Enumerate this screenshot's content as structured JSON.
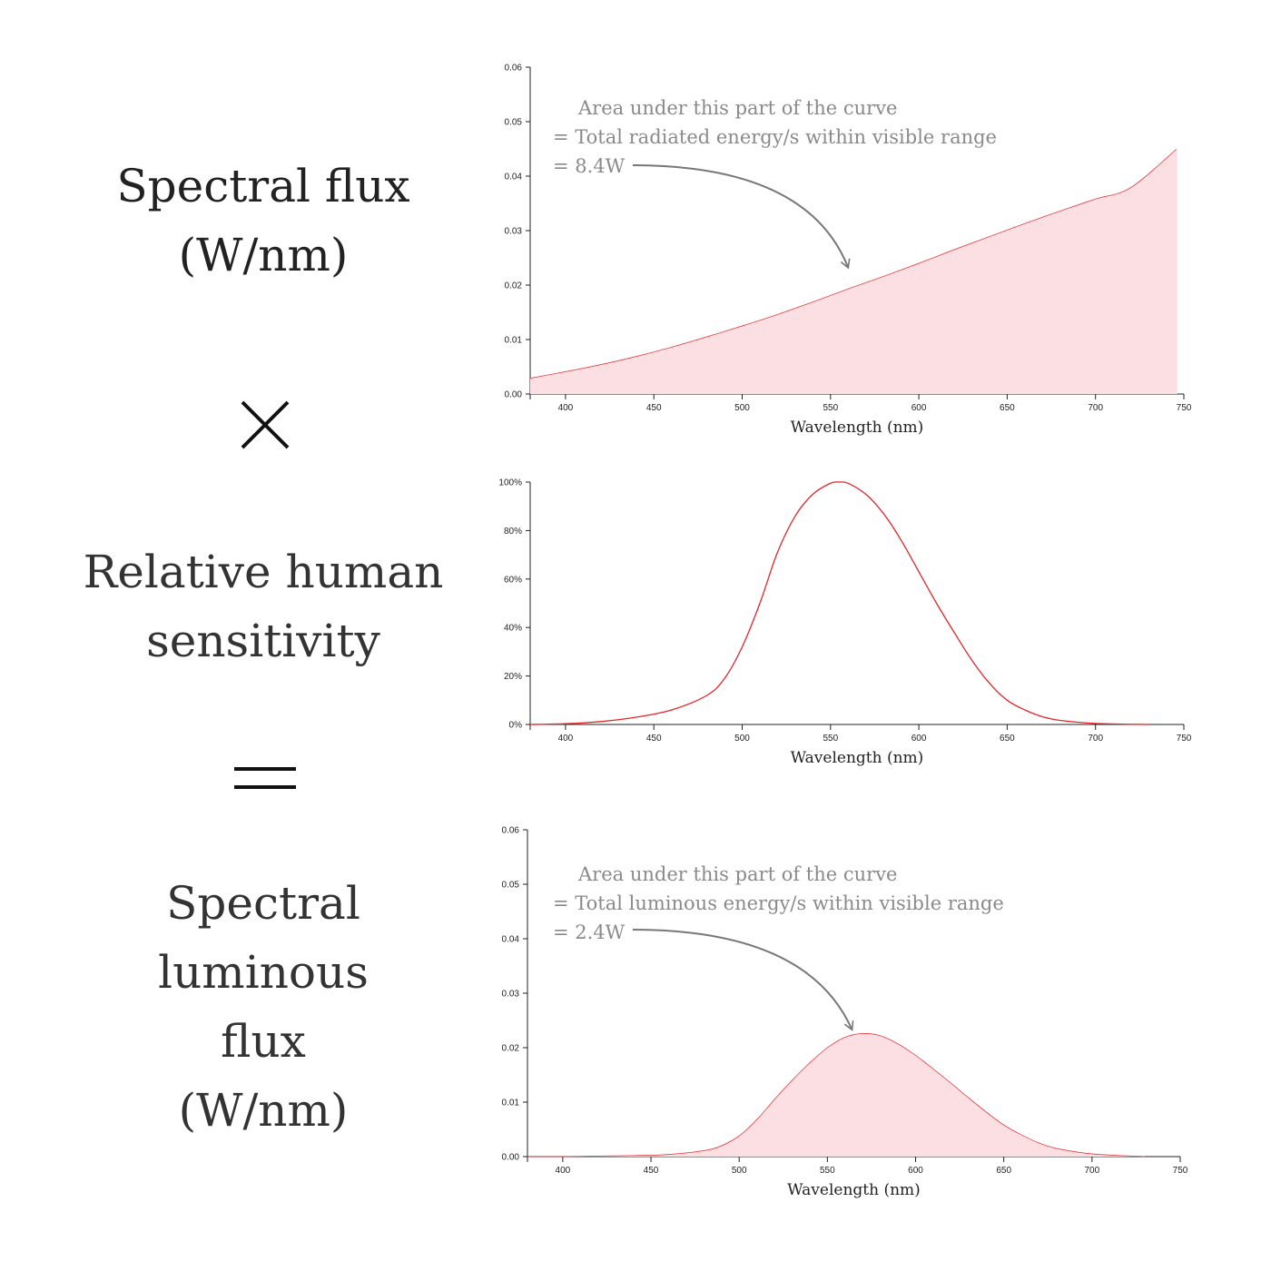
{
  "labels": {
    "spectral_flux": [
      "Spectral flux",
      "(W/nm)"
    ],
    "sensitivity": [
      "Relative human",
      "sensitivity"
    ],
    "luminous_flux": [
      "Spectral",
      "luminous",
      "flux",
      "(W/nm)"
    ]
  },
  "operators": {
    "multiply": "×",
    "equals": "="
  },
  "colors": {
    "curve": "#e2262b",
    "fill": "#fbdfe2",
    "annotation": "#8a8a8a",
    "axis": "#222222"
  },
  "chart_data": [
    {
      "type": "area",
      "title": "Spectral flux (W/nm)",
      "xlabel": "Wavelength (nm)",
      "ylabel": "",
      "xlim": [
        380,
        750
      ],
      "ylim": [
        0,
        0.06
      ],
      "xticks": [
        400,
        450,
        500,
        550,
        600,
        650,
        700,
        750
      ],
      "xtick_labels": [
        "400",
        "450",
        "500",
        "550",
        "600",
        "650",
        "700",
        "750"
      ],
      "yticks": [
        0,
        0.01,
        0.02,
        0.03,
        0.04,
        0.05,
        0.06
      ],
      "ytick_labels": [
        "0.00",
        "0.01",
        "0.02",
        "0.03",
        "0.04",
        "0.05",
        "0.06"
      ],
      "x": [
        380,
        400,
        420,
        440,
        460,
        480,
        500,
        520,
        540,
        560,
        580,
        600,
        620,
        640,
        660,
        680,
        700,
        720,
        746
      ],
      "y": [
        0.0029,
        0.0041,
        0.0054,
        0.0069,
        0.0086,
        0.0105,
        0.0125,
        0.0146,
        0.0169,
        0.0193,
        0.0216,
        0.024,
        0.0265,
        0.0289,
        0.0313,
        0.0336,
        0.0358,
        0.0379,
        0.045
      ],
      "annotation": {
        "lines": [
          "Area under this part of the curve",
          "= Total radiated energy/s within visible range",
          "= 8.4W"
        ],
        "points_to": [
          560,
          0.0225
        ]
      }
    },
    {
      "type": "line",
      "title": "Relative human sensitivity",
      "xlabel": "Wavelength (nm)",
      "ylabel": "",
      "xlim": [
        380,
        750
      ],
      "ylim": [
        0,
        100
      ],
      "xticks": [
        400,
        450,
        500,
        550,
        600,
        650,
        700,
        750
      ],
      "xtick_labels": [
        "400",
        "450",
        "500",
        "550",
        "600",
        "650",
        "700",
        "750"
      ],
      "yticks": [
        0,
        20,
        40,
        60,
        80,
        100
      ],
      "ytick_labels": [
        "0%",
        "20%",
        "40%",
        "60%",
        "80%",
        "100%"
      ],
      "x": [
        380,
        400,
        420,
        440,
        460,
        480,
        490,
        500,
        510,
        520,
        530,
        540,
        550,
        555,
        560,
        570,
        580,
        590,
        600,
        610,
        620,
        630,
        640,
        650,
        660,
        670,
        680,
        700,
        730
      ],
      "y": [
        0,
        0.3,
        1.2,
        3.0,
        6.0,
        12,
        19,
        32,
        50,
        71,
        86,
        95,
        99.5,
        100,
        99.5,
        95,
        87,
        76,
        63,
        50,
        38,
        26.5,
        17,
        10,
        6,
        3.2,
        1.7,
        0.4,
        0
      ]
    },
    {
      "type": "area",
      "title": "Spectral luminous flux (W/nm)",
      "xlabel": "Wavelength (nm)",
      "ylabel": "",
      "xlim": [
        380,
        750
      ],
      "ylim": [
        0,
        0.06
      ],
      "xticks": [
        400,
        450,
        500,
        550,
        600,
        650,
        700,
        750
      ],
      "xtick_labels": [
        "400",
        "450",
        "500",
        "550",
        "600",
        "650",
        "700",
        "750"
      ],
      "yticks": [
        0,
        0.01,
        0.02,
        0.03,
        0.04,
        0.05,
        0.06
      ],
      "ytick_labels": [
        "0.00",
        "0.01",
        "0.02",
        "0.03",
        "0.04",
        "0.05",
        "0.06"
      ],
      "x": [
        380,
        400,
        420,
        440,
        460,
        480,
        490,
        500,
        510,
        520,
        530,
        540,
        550,
        560,
        570,
        580,
        590,
        600,
        610,
        620,
        630,
        640,
        650,
        660,
        670,
        680,
        700,
        730
      ],
      "y": [
        0,
        0.0,
        0.0001,
        0.0002,
        0.0004,
        0.0011,
        0.002,
        0.0038,
        0.0068,
        0.0105,
        0.014,
        0.0172,
        0.02,
        0.0219,
        0.0226,
        0.0222,
        0.0207,
        0.0186,
        0.0161,
        0.0135,
        0.0108,
        0.0082,
        0.0058,
        0.004,
        0.0025,
        0.0015,
        0.0005,
        0
      ],
      "annotation": {
        "lines": [
          "Area under this part of the curve",
          "= Total luminous energy/s within visible range",
          "= 2.4W"
        ],
        "points_to": [
          564,
          0.0226
        ]
      }
    }
  ]
}
